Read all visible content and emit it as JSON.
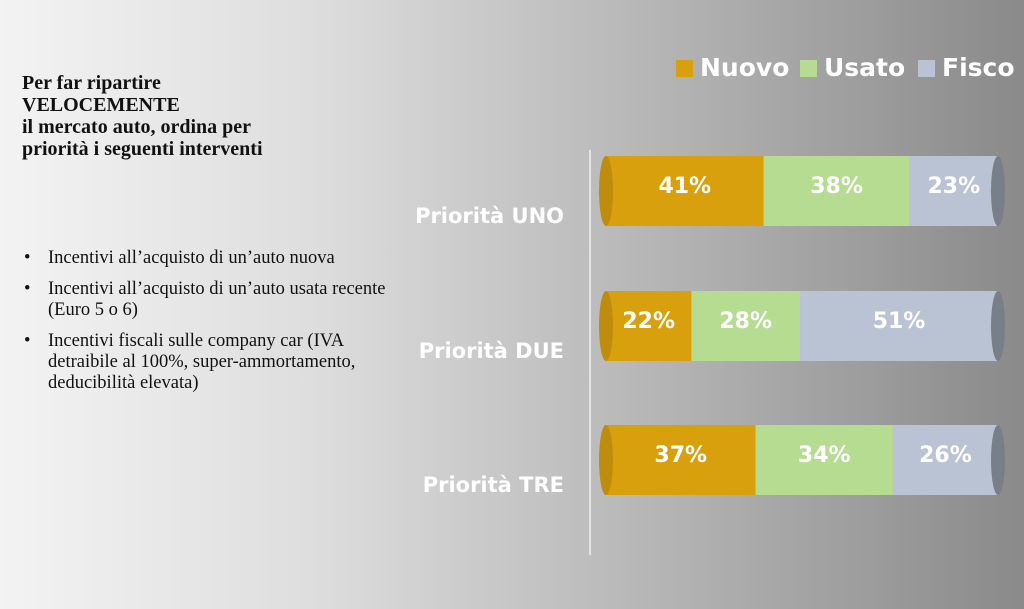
{
  "question": {
    "lines": [
      "Per far ripartire",
      "VELOCEMENTE",
      "il mercato auto, ordina per",
      "priorità i seguenti interventi"
    ]
  },
  "options": [
    {
      "bullet": "•",
      "text": "Incentivi all’acquisto di un’auto nuova"
    },
    {
      "bullet": "•",
      "text": "Incentivi all’acquisto di un’auto usata recente (Euro 5 o 6)"
    },
    {
      "bullet": "•",
      "text": "Incentivi fiscali sulle company car (IVA detraibile al 100%, super-ammortamento, deducibilità elevata)"
    }
  ],
  "chart_data": {
    "type": "bar",
    "orientation": "horizontal",
    "stacked": true,
    "percent_stacked": true,
    "categories": [
      "Priorità UNO",
      "Priorità DUE",
      "Priorità TRE"
    ],
    "series": [
      {
        "name": "Nuovo",
        "color": "#d9a00e",
        "values": [
          41,
          22,
          37
        ],
        "labels": [
          "41%",
          "22%",
          "37%"
        ]
      },
      {
        "name": "Usato",
        "color": "#b6dc92",
        "values": [
          38,
          28,
          34
        ],
        "labels": [
          "38%",
          "28%",
          "34%"
        ]
      },
      {
        "name": "Fisco",
        "color": "#bac3d3",
        "values": [
          23,
          51,
          26
        ],
        "labels": [
          "23%",
          "51%",
          "26%"
        ]
      }
    ],
    "legend_position": "top-right",
    "grid": false
  }
}
